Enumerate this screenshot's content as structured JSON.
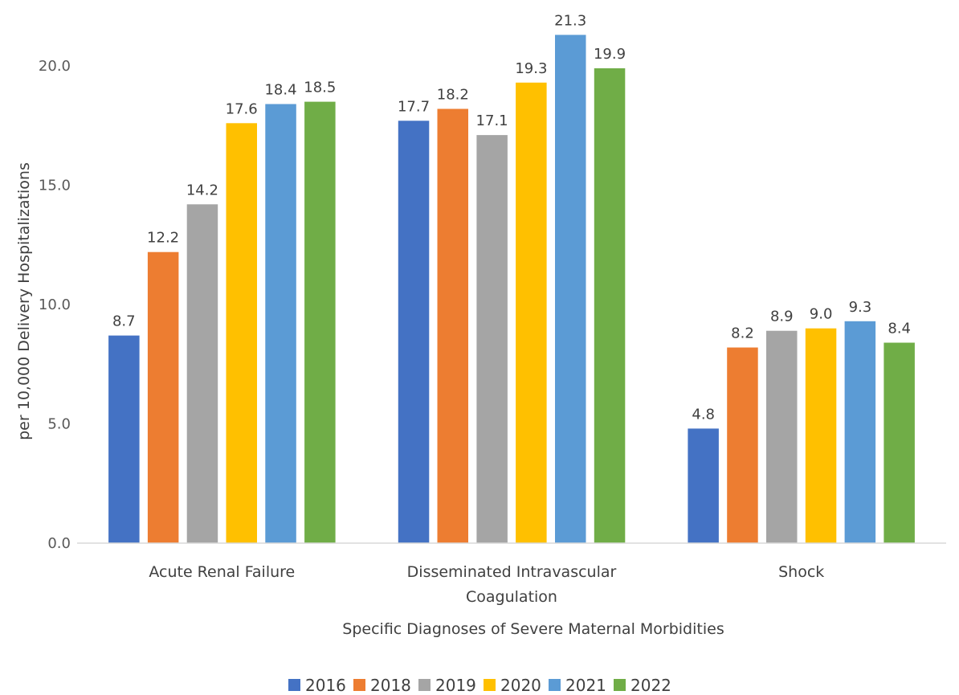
{
  "chart_data": {
    "type": "bar",
    "title": "",
    "xlabel": "Specific Diagnoses of Severe Maternal Morbidities",
    "ylabel": "per 10,000 Delivery Hospitalizations",
    "ylim": [
      0,
      22
    ],
    "yticks": [
      "0.0",
      "5.0",
      "10.0",
      "15.0",
      "20.0"
    ],
    "categories": [
      [
        "Acute Renal Failure"
      ],
      [
        "Disseminated Intravascular",
        "Coagulation"
      ],
      [
        "Shock"
      ]
    ],
    "series": [
      {
        "name": "2016",
        "color": "#4472C4",
        "values": [
          8.7,
          17.7,
          4.8
        ],
        "labels": [
          "8.7",
          "17.7",
          "4.8"
        ]
      },
      {
        "name": "2018",
        "color": "#ED7D31",
        "values": [
          12.2,
          18.2,
          8.2
        ],
        "labels": [
          "12.2",
          "18.2",
          "8.2"
        ]
      },
      {
        "name": "2019",
        "color": "#A5A5A5",
        "values": [
          14.2,
          17.1,
          8.9
        ],
        "labels": [
          "14.2",
          "17.1",
          "8.9"
        ]
      },
      {
        "name": "2020",
        "color": "#FFC000",
        "values": [
          17.6,
          19.3,
          9.0
        ],
        "labels": [
          "17.6",
          "19.3",
          "9.0"
        ]
      },
      {
        "name": "2021",
        "color": "#5B9BD5",
        "values": [
          18.4,
          21.3,
          9.3
        ],
        "labels": [
          "18.4",
          "21.3",
          "9.3"
        ]
      },
      {
        "name": "2022",
        "color": "#70AD47",
        "values": [
          18.5,
          19.9,
          8.4
        ],
        "labels": [
          "18.5",
          "19.9",
          "8.4"
        ]
      }
    ],
    "grid": false,
    "legend": "bottom"
  }
}
